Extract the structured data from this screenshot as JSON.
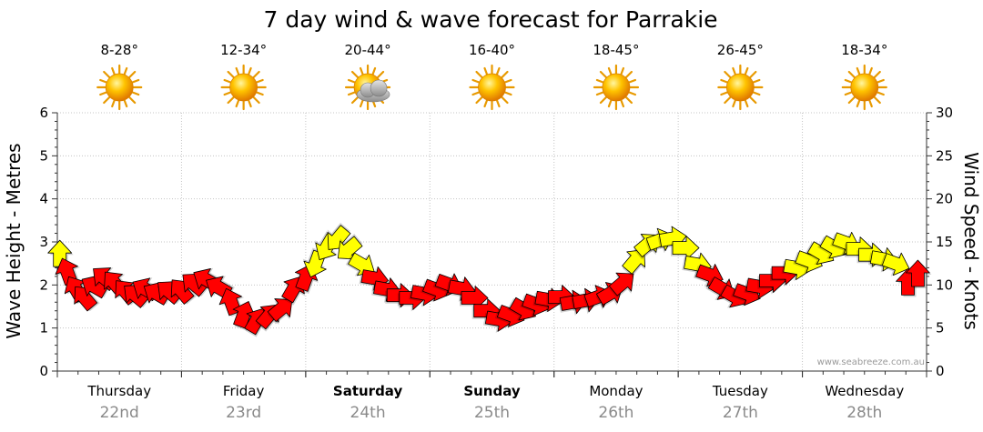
{
  "chart_data": {
    "type": "line",
    "title": "7 day wind & wave forecast for Parrakie",
    "ylabel": "Wave Height - Metres",
    "ylabel_right": "Wind Speed - Knots",
    "ylim": [
      0,
      6
    ],
    "ylim_right": [
      0,
      30
    ],
    "yticks": [
      "0",
      "1",
      "2",
      "3",
      "4",
      "5",
      "6"
    ],
    "yticks_right": [
      "0",
      "5",
      "10",
      "15",
      "20",
      "25",
      "30"
    ],
    "grid": true,
    "credit": "www.seabreeze.com.au",
    "days": [
      {
        "name": "Thursday",
        "date": "22nd",
        "temp": "8-28°",
        "weather": "sunny-icon",
        "bold": false
      },
      {
        "name": "Friday",
        "date": "23rd",
        "temp": "12-34°",
        "weather": "sunny-icon",
        "bold": false
      },
      {
        "name": "Saturday",
        "date": "24th",
        "temp": "20-44°",
        "weather": "partly-cloudy-icon",
        "bold": true
      },
      {
        "name": "Sunday",
        "date": "25th",
        "temp": "16-40°",
        "weather": "sunny-icon",
        "bold": true
      },
      {
        "name": "Monday",
        "date": "26th",
        "temp": "18-45°",
        "weather": "sunny-icon",
        "bold": false
      },
      {
        "name": "Tuesday",
        "date": "27th",
        "temp": "26-45°",
        "weather": "sunny-icon",
        "bold": false
      },
      {
        "name": "Wednesday",
        "date": "28th",
        "temp": "18-34°",
        "weather": "sunny-icon",
        "bold": false
      }
    ],
    "series": [
      {
        "name": "Wind Speed",
        "unit": "knots",
        "x_days": [
          0.02,
          0.08,
          0.15,
          0.22,
          0.3,
          0.38,
          0.46,
          0.55,
          0.63,
          0.71,
          0.8,
          0.9,
          1.0,
          1.1,
          1.2,
          1.3,
          1.4,
          1.5,
          1.6,
          1.7,
          1.8,
          1.9,
          2.0,
          2.08,
          2.17,
          2.26,
          2.35,
          2.45,
          2.55,
          2.65,
          2.75,
          2.85,
          2.95,
          3.05,
          3.15,
          3.25,
          3.35,
          3.45,
          3.55,
          3.65,
          3.75,
          3.85,
          3.95,
          4.05,
          4.15,
          4.25,
          4.35,
          4.45,
          4.55,
          4.65,
          4.75,
          4.85,
          4.95,
          5.05,
          5.15,
          5.25,
          5.35,
          5.45,
          5.55,
          5.65,
          5.75,
          5.85,
          5.95,
          6.05,
          6.15,
          6.25,
          6.35,
          6.45,
          6.55,
          6.65,
          6.75,
          6.85,
          6.93
        ],
        "values": [
          13.5,
          11.5,
          9.5,
          8.5,
          9.8,
          10.8,
          10.2,
          9.2,
          8.8,
          9.5,
          9.0,
          9.2,
          9.3,
          10.1,
          10.6,
          9.7,
          8.0,
          6.5,
          5.8,
          6.4,
          7.2,
          9.5,
          10.8,
          12.5,
          14.4,
          15.4,
          14.2,
          12.4,
          10.8,
          9.5,
          8.8,
          8.5,
          9.0,
          9.5,
          10.1,
          9.6,
          8.5,
          7.0,
          6.0,
          6.5,
          7.2,
          7.8,
          8.3,
          8.6,
          8.0,
          8.2,
          8.6,
          9.0,
          10.2,
          12.8,
          14.7,
          15.2,
          15.4,
          14.3,
          12.4,
          11.2,
          9.6,
          8.7,
          9.0,
          9.8,
          10.5,
          11.4,
          12.0,
          12.8,
          13.7,
          14.4,
          14.9,
          14.2,
          13.5,
          13.0,
          12.5,
          10.2,
          11.2
        ],
        "dir_deg": [
          0,
          340,
          330,
          320,
          300,
          310,
          320,
          320,
          310,
          300,
          300,
          310,
          320,
          310,
          300,
          300,
          340,
          20,
          30,
          40,
          50,
          30,
          20,
          200,
          210,
          220,
          230,
          120,
          100,
          100,
          90,
          90,
          100,
          110,
          110,
          100,
          90,
          90,
          100,
          110,
          120,
          110,
          100,
          90,
          80,
          80,
          70,
          60,
          50,
          40,
          50,
          70,
          80,
          90,
          100,
          110,
          120,
          120,
          110,
          100,
          90,
          90,
          100,
          110,
          120,
          120,
          110,
          90,
          90,
          100,
          110,
          0,
          0
        ]
      }
    ]
  }
}
